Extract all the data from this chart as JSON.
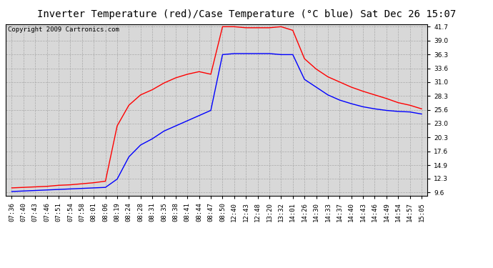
{
  "title": "Inverter Temperature (red)/Case Temperature (°C blue) Sat Dec 26 15:07",
  "copyright": "Copyright 2009 Cartronics.com",
  "bg_color": "#ffffff",
  "plot_bg_color": "#d8d8d8",
  "y_ticks": [
    9.6,
    12.3,
    14.9,
    17.6,
    20.3,
    23.0,
    25.6,
    28.3,
    31.0,
    33.6,
    36.3,
    39.0,
    41.7
  ],
  "ylim": [
    9.0,
    42.2
  ],
  "x_labels": [
    "07:36",
    "07:40",
    "07:43",
    "07:46",
    "07:51",
    "07:54",
    "07:58",
    "08:01",
    "08:06",
    "08:19",
    "08:24",
    "08:28",
    "08:31",
    "08:35",
    "08:38",
    "08:41",
    "08:44",
    "08:47",
    "08:50",
    "12:40",
    "12:43",
    "12:48",
    "13:20",
    "13:32",
    "14:01",
    "14:26",
    "14:30",
    "14:33",
    "14:37",
    "14:40",
    "14:43",
    "14:46",
    "14:49",
    "14:54",
    "14:57",
    "15:05"
  ],
  "red_y": [
    10.5,
    10.6,
    10.7,
    10.8,
    11.0,
    11.1,
    11.3,
    11.5,
    11.8,
    22.5,
    26.5,
    28.5,
    29.5,
    30.8,
    31.8,
    32.5,
    33.0,
    32.5,
    41.7,
    41.7,
    41.5,
    41.5,
    41.5,
    41.7,
    41.0,
    35.5,
    33.5,
    32.0,
    31.0,
    30.0,
    29.2,
    28.5,
    27.8,
    27.0,
    26.5,
    25.8
  ],
  "blue_y": [
    9.8,
    9.9,
    10.0,
    10.1,
    10.2,
    10.3,
    10.4,
    10.5,
    10.6,
    12.2,
    16.5,
    18.8,
    20.0,
    21.5,
    22.5,
    23.5,
    24.5,
    25.5,
    36.3,
    36.5,
    36.5,
    36.5,
    36.5,
    36.3,
    36.3,
    31.5,
    30.0,
    28.5,
    27.5,
    26.8,
    26.2,
    25.8,
    25.5,
    25.3,
    25.2,
    24.8
  ],
  "line_width": 1.0,
  "grid_color": "#aaaaaa",
  "title_fontsize": 10,
  "tick_fontsize": 6.5,
  "copyright_fontsize": 6.5
}
